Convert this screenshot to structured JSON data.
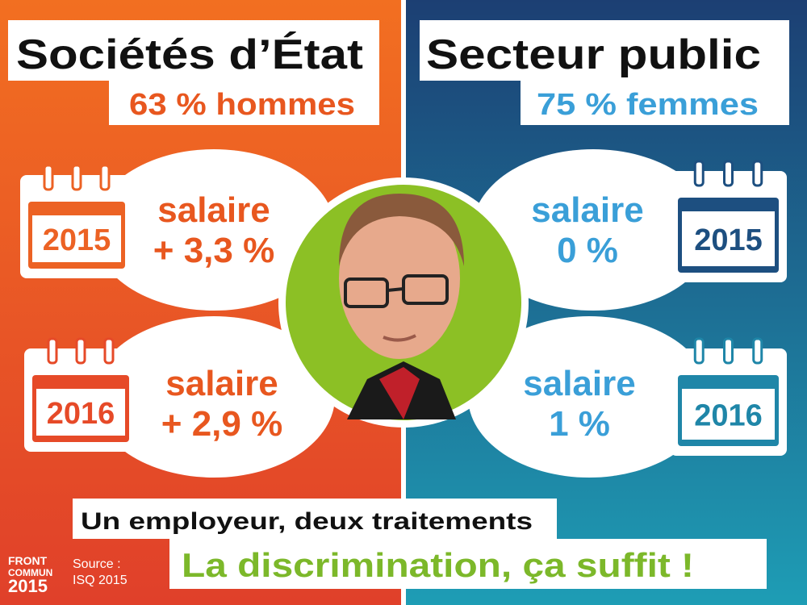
{
  "left": {
    "title": "Sociétés d’État",
    "subtitle": "63 % hommes",
    "rows": [
      {
        "year": "2015",
        "label": "salaire",
        "change": "+ 3,3 %"
      },
      {
        "year": "2016",
        "label": "salaire",
        "change": "+ 2,9 %"
      }
    ]
  },
  "right": {
    "title": "Secteur public",
    "subtitle": "75 % femmes",
    "rows": [
      {
        "year": "2015",
        "label": "salaire",
        "change": "0 %"
      },
      {
        "year": "2016",
        "label": "salaire",
        "change": "1 %"
      }
    ]
  },
  "footer": {
    "tagline": "Un employeur, deux traitements",
    "slogan": "La discrimination, ça suffit !",
    "logo": [
      "FRONT",
      "COMMUN",
      "2015"
    ],
    "source": [
      "Source :",
      "ISQ 2015"
    ]
  }
}
